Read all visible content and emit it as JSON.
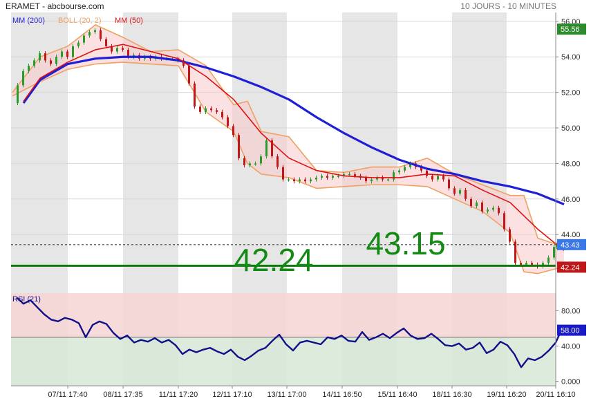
{
  "header": {
    "title": "ERAMET - abcbourse.com",
    "period": "10 JOURS - 10 MINUTES"
  },
  "colors": {
    "mm200": "#1f1fd6",
    "boll": "#f0a060",
    "mm50": "#dd1111",
    "candle_up": "#2a9a2a",
    "candle_down": "#c01818",
    "support": "#0c7a0c",
    "rsi": "#10108a",
    "rsi_upper_zone": "#f6d4d4",
    "rsi_lower_zone": "#d6e8d6",
    "day_band": "#e6e6e6"
  },
  "chart_data": [
    {
      "type": "line",
      "title": "ERAMET - abcbourse.com",
      "period": "10 JOURS - 10 MINUTES",
      "legend": [
        "MM (200)",
        "BOLL (20, 2)",
        "MM (50)"
      ],
      "x_tick_labels": [
        "07/11 17:40",
        "08/11 17:35",
        "11/11 17:20",
        "12/11 17:10",
        "13/11 17:00",
        "14/11 16:50",
        "15/11 16:40",
        "18/11 16:30",
        "19/11 16:20",
        "20/11 16:10"
      ],
      "y_ticks": [
        44,
        46,
        48,
        50,
        52,
        54,
        56
      ],
      "y_tick_labels": [
        "44.00",
        "46.00",
        "48.00",
        "50.00",
        "52.00",
        "54.00",
        "56.00"
      ],
      "ylim": [
        41.4,
        56.5
      ],
      "price_series": {
        "name": "ERAMET",
        "x": [
          0,
          8,
          16,
          24,
          32,
          40,
          48,
          56,
          64,
          72,
          80,
          88,
          96,
          104,
          112,
          120,
          128,
          136,
          144,
          152,
          160,
          168,
          176,
          184,
          192,
          200,
          208,
          216,
          224,
          232,
          240,
          248,
          256,
          264,
          272,
          280,
          288,
          296,
          304,
          312,
          320,
          328,
          336,
          344,
          352,
          360,
          368,
          376,
          384,
          392,
          400,
          408,
          416,
          424,
          432,
          440,
          448,
          456,
          464,
          472,
          480,
          488,
          496,
          504,
          512,
          520,
          528,
          536,
          544,
          552,
          560,
          568,
          576,
          584,
          592,
          600,
          608,
          616,
          624,
          632,
          640,
          648,
          656,
          664,
          672,
          680,
          688,
          696,
          704,
          712,
          720,
          728,
          736,
          744,
          752,
          760,
          768,
          776,
          784,
          788
        ],
        "y": [
          51.4,
          52.4,
          53.2,
          53.5,
          53.8,
          54.2,
          53.8,
          53.6,
          54.0,
          54.3,
          54.0,
          54.6,
          54.8,
          55.2,
          55.4,
          55.5,
          55.0,
          54.6,
          54.3,
          54.5,
          54.4,
          54.0,
          54.1,
          53.9,
          54.0,
          53.9,
          54.0,
          53.9,
          53.9,
          53.9,
          53.8,
          53.5,
          52.5,
          51.2,
          50.9,
          51.1,
          51.0,
          50.9,
          50.6,
          50.1,
          49.6,
          48.3,
          47.9,
          48.0,
          48.0,
          48.4,
          49.3,
          48.4,
          47.8,
          47.1,
          47.1,
          47.0,
          47.1,
          47.0,
          47.1,
          47.2,
          47.3,
          47.2,
          47.3,
          47.3,
          47.4,
          47.4,
          47.3,
          47.2,
          47.0,
          47.1,
          47.2,
          47.1,
          47.1,
          47.5,
          47.6,
          47.8,
          48.0,
          47.8,
          47.6,
          47.3,
          47.1,
          47.3,
          47.1,
          46.6,
          46.3,
          46.5,
          46.0,
          45.6,
          45.8,
          45.3,
          45.4,
          45.5,
          45.2,
          44.3,
          43.6,
          42.4,
          42.3,
          42.4,
          42.3,
          42.2,
          42.4,
          42.7,
          43.3,
          43.43
        ]
      },
      "ma200_series": {
        "name": "MM (200)",
        "x": [
          16,
          40,
          80,
          120,
          160,
          200,
          240,
          280,
          320,
          360,
          400,
          440,
          480,
          520,
          560,
          600,
          640,
          680,
          720,
          760,
          798
        ],
        "y": [
          51.4,
          52.7,
          53.6,
          53.9,
          54.0,
          54.0,
          53.8,
          53.4,
          52.9,
          52.3,
          51.6,
          50.6,
          49.7,
          48.9,
          48.2,
          47.7,
          47.4,
          47.0,
          46.7,
          46.3,
          45.7
        ]
      },
      "ma50_series": {
        "name": "MM (50)",
        "x": [
          16,
          40,
          80,
          120,
          160,
          200,
          240,
          280,
          320,
          360,
          400,
          440,
          480,
          520,
          560,
          600,
          640,
          680,
          720,
          760,
          798
        ],
        "y": [
          51.5,
          52.8,
          53.7,
          54.4,
          54.7,
          54.3,
          53.9,
          52.9,
          51.6,
          49.7,
          48.3,
          47.6,
          47.3,
          47.2,
          47.2,
          47.4,
          47.3,
          46.5,
          45.8,
          44.3,
          43.1
        ]
      },
      "boll_upper": {
        "name": "BOLL (20, 2) upper",
        "x": [
          0,
          40,
          80,
          120,
          160,
          200,
          240,
          280,
          320,
          340,
          360,
          400,
          440,
          480,
          520,
          560,
          600,
          640,
          680,
          720,
          740,
          760,
          798
        ],
        "y": [
          52.0,
          54.0,
          54.6,
          55.8,
          55.1,
          54.3,
          54.4,
          53.5,
          51.3,
          51.5,
          49.8,
          49.5,
          47.6,
          47.5,
          47.8,
          47.8,
          48.3,
          47.4,
          46.8,
          46.2,
          46.2,
          43.8,
          43.3
        ]
      },
      "boll_lower": {
        "name": "BOLL (20, 2) lower",
        "x": [
          0,
          40,
          80,
          120,
          160,
          200,
          240,
          280,
          320,
          340,
          360,
          400,
          440,
          480,
          520,
          560,
          600,
          640,
          680,
          720,
          740,
          760,
          798
        ],
        "y": [
          51.8,
          52.6,
          53.3,
          53.6,
          53.7,
          53.6,
          53.5,
          50.9,
          49.8,
          48.0,
          47.4,
          47.2,
          46.6,
          46.7,
          46.8,
          46.8,
          46.7,
          46.0,
          45.3,
          44.1,
          41.9,
          41.8,
          42.2
        ]
      },
      "support_line": {
        "value": 42.24,
        "label": "42.24"
      },
      "support_line2_label": "43.15",
      "last_price": {
        "value": 43.43,
        "label": "43.43"
      },
      "high_label": {
        "value": 55.56,
        "label": "55.56"
      },
      "low_label": {
        "value": 42.24,
        "label": "42.24"
      }
    },
    {
      "type": "line",
      "title": "RSI (21)",
      "y_ticks": [
        0,
        40,
        80
      ],
      "y_tick_labels": [
        "0.000",
        "40.00",
        "80.00"
      ],
      "ylim": [
        -5,
        100
      ],
      "reference_line": 50,
      "last_value_label": "58.00",
      "series": {
        "name": "RSI (21)",
        "x": [
          6,
          16,
          26,
          36,
          46,
          56,
          66,
          76,
          86,
          96,
          106,
          116,
          126,
          136,
          146,
          156,
          166,
          176,
          186,
          196,
          206,
          216,
          226,
          236,
          246,
          256,
          266,
          276,
          286,
          296,
          306,
          316,
          326,
          336,
          346,
          356,
          366,
          376,
          386,
          396,
          406,
          416,
          426,
          436,
          446,
          456,
          466,
          476,
          486,
          496,
          506,
          516,
          526,
          536,
          546,
          556,
          566,
          576,
          586,
          596,
          606,
          616,
          626,
          636,
          646,
          656,
          666,
          676,
          686,
          696,
          706,
          716,
          726,
          736,
          746,
          756,
          766,
          776,
          786,
          794
        ],
        "y": [
          95,
          88,
          92,
          84,
          76,
          70,
          68,
          72,
          70,
          66,
          50,
          64,
          68,
          65,
          55,
          48,
          52,
          44,
          47,
          45,
          49,
          44,
          47,
          41,
          31,
          36,
          33,
          36,
          38,
          34,
          31,
          36,
          28,
          24,
          29,
          35,
          38,
          46,
          53,
          42,
          35,
          44,
          46,
          44,
          42,
          50,
          48,
          52,
          46,
          45,
          56,
          47,
          50,
          54,
          49,
          55,
          60,
          52,
          48,
          49,
          54,
          48,
          41,
          40,
          43,
          36,
          38,
          44,
          32,
          36,
          45,
          41,
          31,
          16,
          26,
          24,
          28,
          35,
          44,
          58
        ]
      }
    }
  ]
}
